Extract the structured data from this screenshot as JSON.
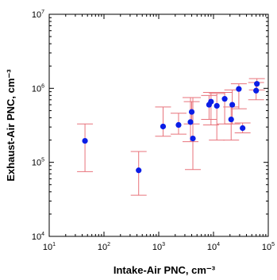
{
  "chart_data": {
    "type": "scatter",
    "title": "",
    "xlabel": "Intake-Air PNC, cm⁻³",
    "ylabel": "Exhaust-Air PNC, cm⁻³",
    "x_scale": "log",
    "y_scale": "log",
    "xlim": [
      10,
      100000
    ],
    "ylim": [
      10000,
      10000000
    ],
    "grid": false,
    "legend": "none",
    "x_ticks": [
      {
        "base": "10",
        "exp": "1",
        "value": 10
      },
      {
        "base": "10",
        "exp": "2",
        "value": 100
      },
      {
        "base": "10",
        "exp": "3",
        "value": 1000
      },
      {
        "base": "10",
        "exp": "4",
        "value": 10000
      },
      {
        "base": "10",
        "exp": "5",
        "value": 100000
      }
    ],
    "y_ticks": [
      {
        "base": "10",
        "exp": "4",
        "value": 10000
      },
      {
        "base": "10",
        "exp": "5",
        "value": 100000
      },
      {
        "base": "10",
        "exp": "6",
        "value": 1000000
      },
      {
        "base": "10",
        "exp": "7",
        "value": 10000000
      }
    ],
    "colors": {
      "point": "#0b1de6",
      "error_bar": "#e8737b",
      "axis": "#000000"
    },
    "points": [
      {
        "x": 45,
        "y": 195000,
        "y_low": 75000,
        "y_high": 330000
      },
      {
        "x": 430,
        "y": 78000,
        "y_low": 36000,
        "y_high": 140000
      },
      {
        "x": 1200,
        "y": 305000,
        "y_low": 225000,
        "y_high": 560000
      },
      {
        "x": 2300,
        "y": 320000,
        "y_low": 240000,
        "y_high": 460000
      },
      {
        "x": 3800,
        "y": 350000,
        "y_low": 190000,
        "y_high": 750000
      },
      {
        "x": 4000,
        "y": 480000,
        "y_low": 330000,
        "y_high": 660000
      },
      {
        "x": 4200,
        "y": 210000,
        "y_low": 80000,
        "y_high": 750000
      },
      {
        "x": 8300,
        "y": 600000,
        "y_low": 380000,
        "y_high": 800000
      },
      {
        "x": 9000,
        "y": 660000,
        "y_low": 320000,
        "y_high": 880000
      },
      {
        "x": 11500,
        "y": 580000,
        "y_low": 200000,
        "y_high": 850000
      },
      {
        "x": 16000,
        "y": 720000,
        "y_low": 330000,
        "y_high": 880000
      },
      {
        "x": 21000,
        "y": 380000,
        "y_low": 200000,
        "y_high": 560000
      },
      {
        "x": 22000,
        "y": 600000,
        "y_low": 330000,
        "y_high": 950000
      },
      {
        "x": 29000,
        "y": 980000,
        "y_low": 530000,
        "y_high": 1150000
      },
      {
        "x": 34000,
        "y": 290000,
        "y_low": 250000,
        "y_high": 340000
      },
      {
        "x": 60000,
        "y": 930000,
        "y_low": 700000,
        "y_high": 1200000
      },
      {
        "x": 62000,
        "y": 1150000,
        "y_low": 950000,
        "y_high": 1350000
      }
    ]
  }
}
